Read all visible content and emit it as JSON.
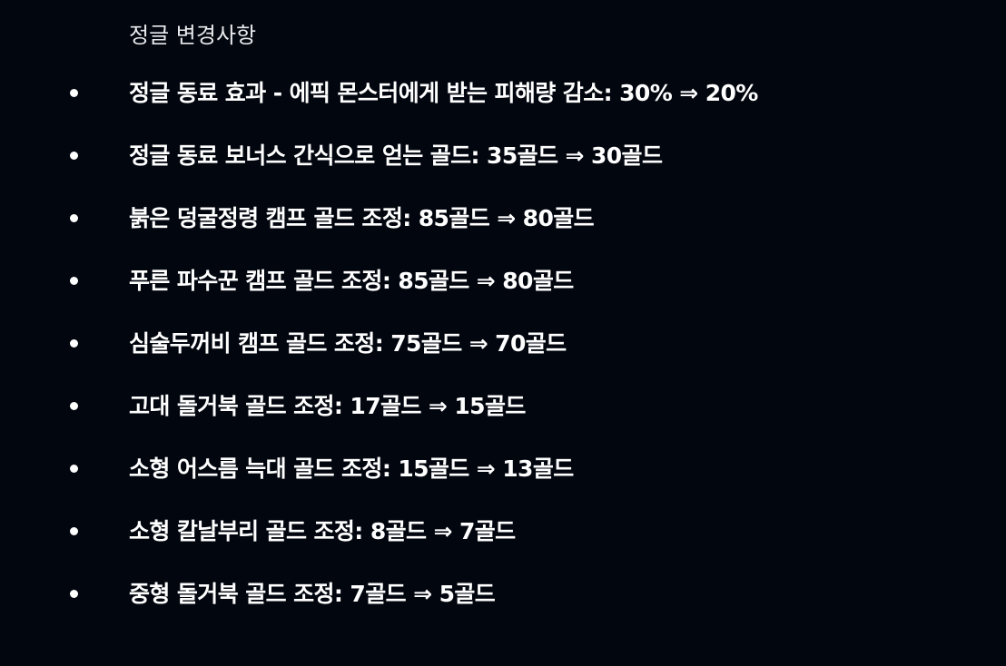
{
  "section": {
    "title": "정글 변경사항"
  },
  "changes": [
    "정글 동료 효과 - 에픽 몬스터에게 받는 피해량 감소: 30% ⇒ 20%",
    "정글 동료 보너스 간식으로 얻는 골드: 35골드 ⇒ 30골드",
    "붉은 덩굴정령 캠프 골드 조정: 85골드 ⇒ 80골드",
    "푸른 파수꾼 캠프 골드 조정: 85골드 ⇒ 80골드",
    "심술두꺼비 캠프 골드 조정: 75골드 ⇒ 70골드",
    "고대 돌거북 골드 조정: 17골드 ⇒ 15골드",
    "소형 어스름 늑대 골드 조정: 15골드 ⇒ 13골드",
    "소형 칼날부리 골드 조정: 8골드 ⇒ 7골드",
    "중형 돌거북 골드 조정: 7골드 ⇒ 5골드"
  ]
}
